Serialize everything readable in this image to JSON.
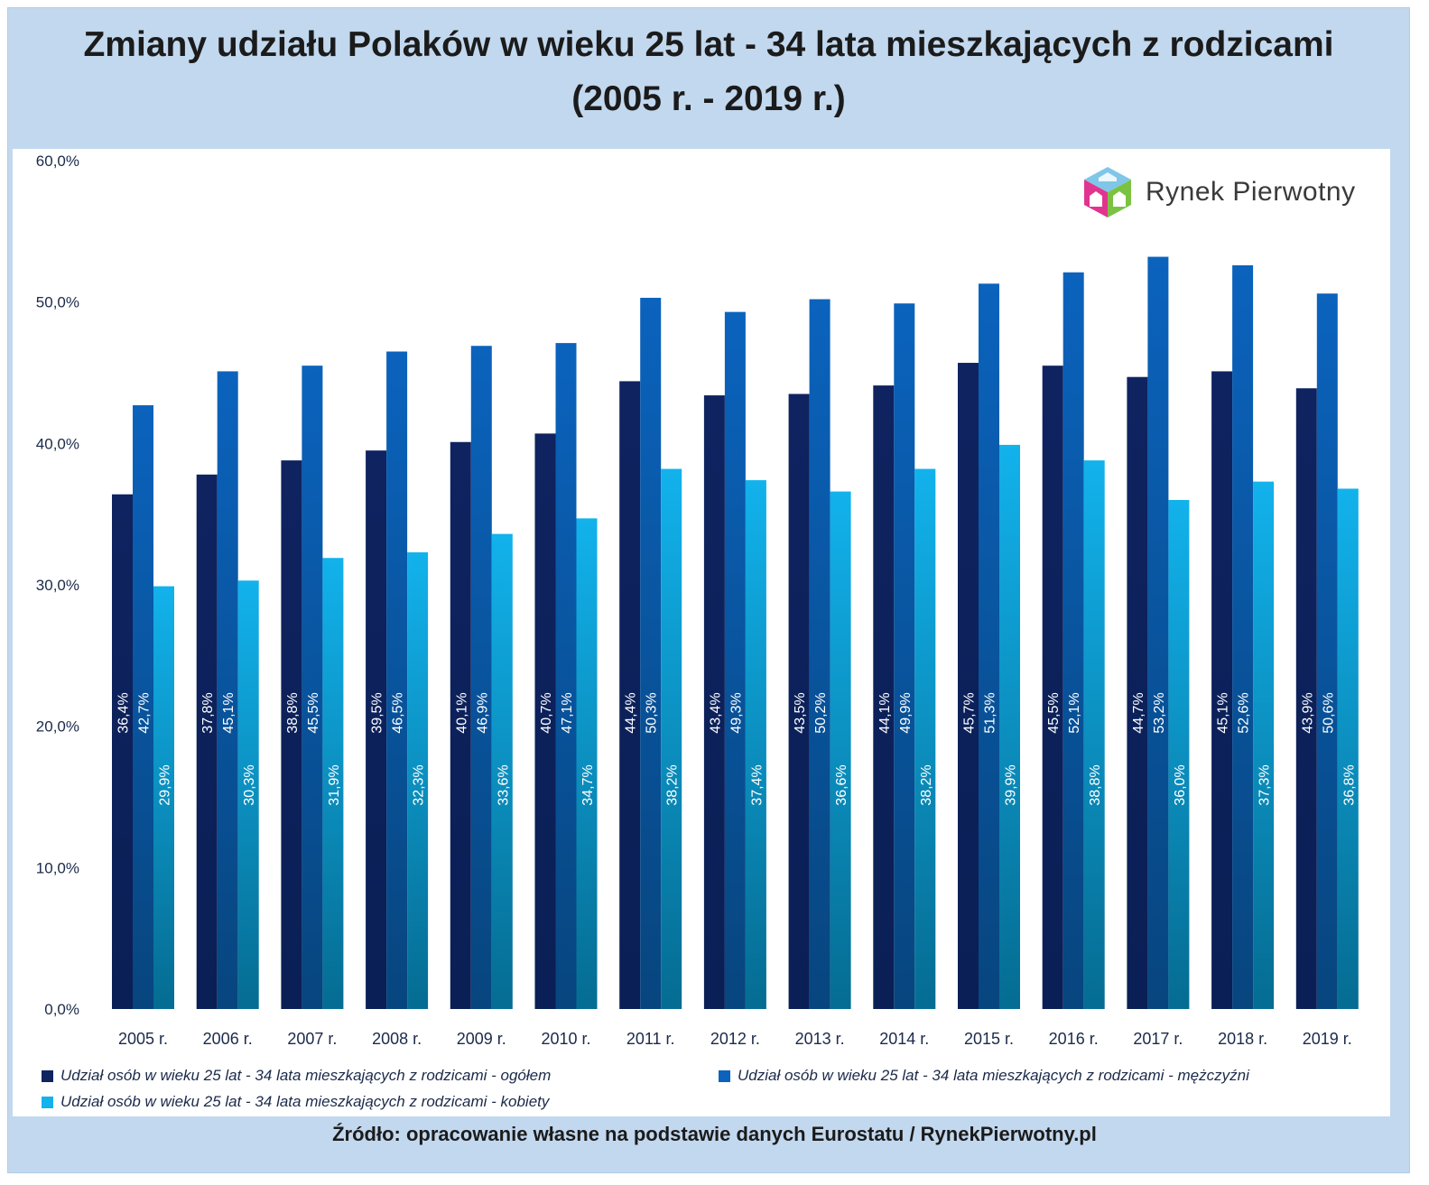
{
  "chart_data": {
    "type": "bar",
    "title": "Zmiany udziału Polaków w wieku 25 lat - 34 lata mieszkających z rodzicami (2005 r. - 2019 r.)",
    "categories": [
      "2005 r.",
      "2006 r.",
      "2007 r.",
      "2008 r.",
      "2009 r.",
      "2010 r.",
      "2011 r.",
      "2012 r.",
      "2013 r.",
      "2014 r.",
      "2015 r.",
      "2016 r.",
      "2017 r.",
      "2018 r.",
      "2019 r."
    ],
    "series": [
      {
        "name": "Udział osób w wieku 25 lat - 34 lata mieszkających z rodzicami - ogółem",
        "values": [
          36.4,
          37.8,
          38.8,
          39.5,
          40.1,
          40.7,
          44.4,
          43.4,
          43.5,
          44.1,
          45.7,
          45.5,
          44.7,
          45.1,
          43.9
        ],
        "labels": [
          "36,4%",
          "37,8%",
          "38,8%",
          "39,5%",
          "40,1%",
          "40,7%",
          "44,4%",
          "43,4%",
          "43,5%",
          "44,1%",
          "45,7%",
          "45,5%",
          "44,7%",
          "45,1%",
          "43,9%"
        ]
      },
      {
        "name": "Udział osób w wieku 25 lat - 34 lata mieszkających z rodzicami - mężczyźni",
        "values": [
          42.7,
          45.1,
          45.5,
          46.5,
          46.9,
          47.1,
          50.3,
          49.3,
          50.2,
          49.9,
          51.3,
          52.1,
          53.2,
          52.6,
          50.6
        ],
        "labels": [
          "42,7%",
          "45,1%",
          "45,5%",
          "46,5%",
          "46,9%",
          "47,1%",
          "50,3%",
          "49,3%",
          "50,2%",
          "49,9%",
          "51,3%",
          "52,1%",
          "53,2%",
          "52,6%",
          "50,6%"
        ]
      },
      {
        "name": "Udział osób w wieku 25 lat - 34 lata mieszkających z rodzicami - kobiety",
        "values": [
          29.9,
          30.3,
          31.9,
          32.3,
          33.6,
          34.7,
          38.2,
          37.4,
          36.6,
          38.2,
          39.9,
          38.8,
          36.0,
          37.3,
          36.8
        ],
        "labels": [
          "29,9%",
          "30,3%",
          "31,9%",
          "32,3%",
          "33,6%",
          "34,7%",
          "38,2%",
          "37,4%",
          "36,6%",
          "38,2%",
          "39,9%",
          "38,8%",
          "36,0%",
          "37,3%",
          "36,8%"
        ]
      }
    ],
    "y_ticks": [
      "0,0%",
      "10,0%",
      "20,0%",
      "30,0%",
      "40,0%",
      "50,0%",
      "60,0%"
    ],
    "ylim": [
      0,
      60
    ],
    "xlabel": "",
    "ylabel": "",
    "legend_position": "bottom",
    "colors": [
      "#0f2360",
      "#0b63bd",
      "#12b2ec"
    ],
    "colors_bottom": [
      "#0a1f55",
      "#07457e",
      "#056c92"
    ]
  },
  "logo": {
    "text": "Rynek Pierwotny"
  },
  "source": "Źródło: opracowanie własne na podstawie danych Eurostatu / RynekPierwotny.pl"
}
